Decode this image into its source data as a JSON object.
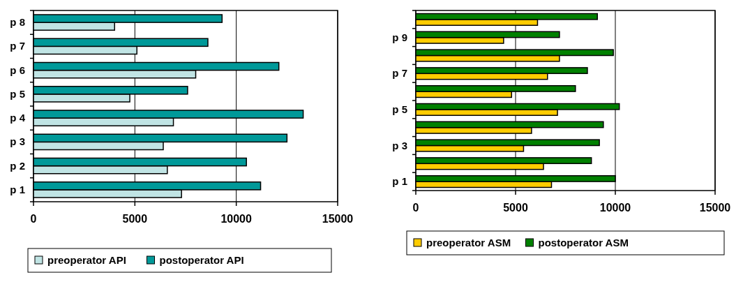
{
  "chart_data": [
    {
      "type": "bar",
      "orientation": "horizontal",
      "categories": [
        "p 8",
        "p 7",
        "p 6",
        "p 5",
        "p 4",
        "p 3",
        "p 2",
        "p 1"
      ],
      "series": [
        {
          "name": "preoperator API",
          "color": "#c0e4e4",
          "values": [
            4000,
            5100,
            8000,
            4750,
            6900,
            6400,
            6600,
            7300
          ]
        },
        {
          "name": "postoperator API",
          "color": "#009999",
          "values": [
            9300,
            8600,
            12100,
            7600,
            13300,
            12500,
            10500,
            11200
          ]
        }
      ],
      "xlim": [
        0,
        15000
      ],
      "xticks": [
        0,
        5000,
        10000,
        15000
      ],
      "grid": "x",
      "legend": "bottom"
    },
    {
      "type": "bar",
      "orientation": "horizontal",
      "categories": [
        null,
        "p 9",
        null,
        "p 7",
        null,
        "p 5",
        null,
        "p 3",
        null,
        "p 1"
      ],
      "series": [
        {
          "name": "preoperator ASM",
          "color": "#ffcc00",
          "values": [
            6100,
            4400,
            7200,
            6600,
            4800,
            7100,
            5800,
            5400,
            6400,
            6800
          ]
        },
        {
          "name": "postoperator ASM",
          "color": "#008000",
          "values": [
            9100,
            7200,
            9900,
            8600,
            8000,
            10200,
            9400,
            9200,
            8800,
            10000
          ]
        }
      ],
      "xlim": [
        0,
        15000
      ],
      "xticks": [
        0,
        5000,
        10000,
        15000
      ],
      "grid": "x",
      "legend": "bottom"
    }
  ]
}
